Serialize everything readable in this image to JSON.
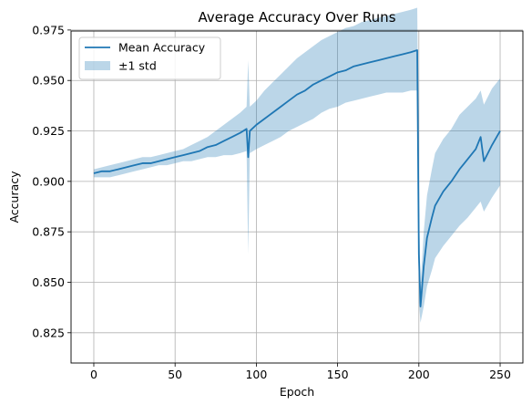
{
  "chart_data": {
    "type": "line",
    "title": "Average Accuracy Over Runs",
    "xlabel": "Epoch",
    "ylabel": "Accuracy",
    "xlim": [
      -14,
      264
    ],
    "ylim": [
      0.81,
      0.9745
    ],
    "x_ticks": [
      0,
      50,
      100,
      150,
      200,
      250
    ],
    "x_tick_labels": [
      "0",
      "50",
      "100",
      "150",
      "200",
      "250"
    ],
    "y_ticks": [
      0.825,
      0.85,
      0.875,
      0.9,
      0.925,
      0.95,
      0.975
    ],
    "y_tick_labels": [
      "0.825",
      "0.850",
      "0.875",
      "0.900",
      "0.925",
      "0.950",
      "0.975"
    ],
    "grid": true,
    "legend_position": "upper-left",
    "colors": {
      "line": "#1f77b4",
      "band": "#1f77b4",
      "band_opacity": 0.3,
      "grid": "#b0b0b0"
    },
    "series": [
      {
        "name": "Mean Accuracy",
        "kind": "line",
        "x": [
          0,
          5,
          10,
          15,
          20,
          25,
          30,
          35,
          40,
          45,
          50,
          55,
          60,
          65,
          70,
          75,
          80,
          85,
          90,
          94,
          95,
          96,
          100,
          105,
          110,
          115,
          120,
          125,
          130,
          135,
          140,
          145,
          150,
          155,
          160,
          165,
          170,
          175,
          180,
          185,
          190,
          195,
          199,
          200,
          201,
          203,
          205,
          208,
          210,
          215,
          220,
          225,
          230,
          235,
          238,
          240,
          245,
          250
        ],
        "y": [
          0.904,
          0.905,
          0.905,
          0.906,
          0.907,
          0.908,
          0.909,
          0.909,
          0.91,
          0.911,
          0.912,
          0.913,
          0.914,
          0.915,
          0.917,
          0.918,
          0.92,
          0.922,
          0.924,
          0.926,
          0.912,
          0.925,
          0.928,
          0.931,
          0.934,
          0.937,
          0.94,
          0.943,
          0.945,
          0.948,
          0.95,
          0.952,
          0.954,
          0.955,
          0.957,
          0.958,
          0.959,
          0.96,
          0.961,
          0.962,
          0.963,
          0.964,
          0.965,
          0.864,
          0.838,
          0.858,
          0.872,
          0.882,
          0.888,
          0.895,
          0.9,
          0.906,
          0.911,
          0.916,
          0.922,
          0.91,
          0.918,
          0.925
        ]
      },
      {
        "name": "±1 std",
        "kind": "band",
        "x": [
          0,
          5,
          10,
          15,
          20,
          25,
          30,
          35,
          40,
          45,
          50,
          55,
          60,
          65,
          70,
          75,
          80,
          85,
          90,
          94,
          95,
          96,
          100,
          105,
          110,
          115,
          120,
          125,
          130,
          135,
          140,
          145,
          150,
          155,
          160,
          165,
          170,
          175,
          180,
          185,
          190,
          195,
          199,
          200,
          201,
          203,
          205,
          208,
          210,
          215,
          220,
          225,
          230,
          235,
          238,
          240,
          245,
          250
        ],
        "lower": [
          0.902,
          0.902,
          0.902,
          0.903,
          0.904,
          0.905,
          0.906,
          0.907,
          0.908,
          0.908,
          0.909,
          0.91,
          0.91,
          0.911,
          0.912,
          0.912,
          0.913,
          0.913,
          0.914,
          0.915,
          0.864,
          0.914,
          0.916,
          0.918,
          0.92,
          0.922,
          0.925,
          0.927,
          0.929,
          0.931,
          0.934,
          0.936,
          0.937,
          0.939,
          0.94,
          0.941,
          0.942,
          0.943,
          0.944,
          0.944,
          0.944,
          0.945,
          0.945,
          0.84,
          0.83,
          0.838,
          0.848,
          0.856,
          0.862,
          0.868,
          0.873,
          0.878,
          0.882,
          0.887,
          0.89,
          0.885,
          0.892,
          0.898
        ],
        "upper": [
          0.906,
          0.907,
          0.908,
          0.909,
          0.91,
          0.911,
          0.912,
          0.912,
          0.913,
          0.914,
          0.915,
          0.916,
          0.918,
          0.92,
          0.922,
          0.925,
          0.928,
          0.931,
          0.934,
          0.937,
          0.96,
          0.937,
          0.94,
          0.945,
          0.949,
          0.953,
          0.957,
          0.961,
          0.964,
          0.967,
          0.97,
          0.972,
          0.974,
          0.976,
          0.977,
          0.979,
          0.98,
          0.981,
          0.982,
          0.983,
          0.984,
          0.985,
          0.986,
          0.892,
          0.848,
          0.875,
          0.893,
          0.906,
          0.914,
          0.921,
          0.926,
          0.933,
          0.937,
          0.941,
          0.945,
          0.938,
          0.946,
          0.951
        ]
      }
    ]
  }
}
